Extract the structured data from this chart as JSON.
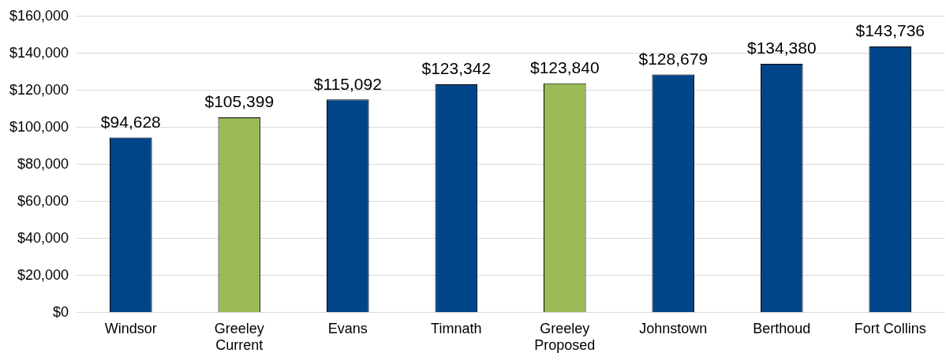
{
  "chart_data": {
    "type": "bar",
    "categories": [
      "Windsor",
      "Greeley\nCurrent",
      "Evans",
      "Timnath",
      "Greeley\nProposed",
      "Johnstown",
      "Berthoud",
      "Fort Collins"
    ],
    "values": [
      94628,
      105399,
      115092,
      123342,
      123840,
      128679,
      134380,
      143736
    ],
    "colors": [
      "#004589",
      "#9bbb59",
      "#004589",
      "#004589",
      "#9bbb59",
      "#004589",
      "#004589",
      "#004589"
    ],
    "value_labels": [
      "$94,628",
      "$105,399",
      "$115,092",
      "$123,342",
      "$123,840",
      "$128,679",
      "$134,380",
      "$143,736"
    ],
    "ylim": [
      0,
      160000
    ],
    "yticks": [
      {
        "value": 0,
        "label": "$0"
      },
      {
        "value": 20000,
        "label": "$20,000"
      },
      {
        "value": 40000,
        "label": "$40,000"
      },
      {
        "value": 60000,
        "label": "$60,000"
      },
      {
        "value": 80000,
        "label": "$80,000"
      },
      {
        "value": 100000,
        "label": "$100,000"
      },
      {
        "value": 120000,
        "label": "$120,000"
      },
      {
        "value": 140000,
        "label": "$140,000"
      },
      {
        "value": 160000,
        "label": "$160,000"
      }
    ],
    "grid": "y",
    "legend": false
  }
}
